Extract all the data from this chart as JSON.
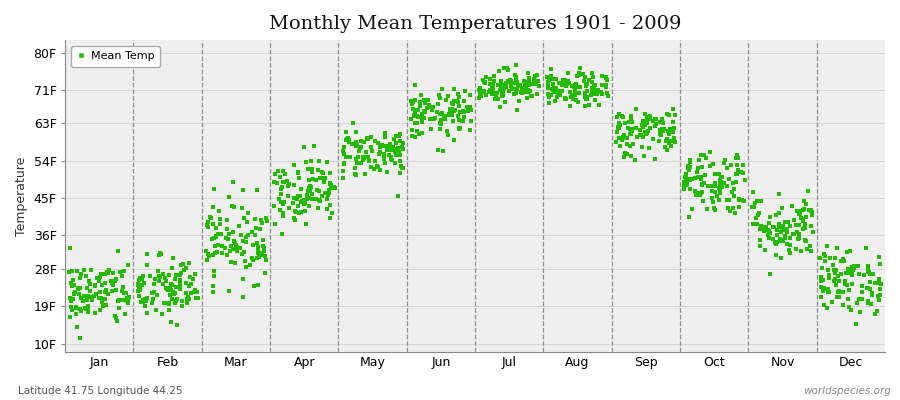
{
  "title": "Monthly Mean Temperatures 1901 - 2009",
  "ylabel": "Temperature",
  "lat_lon_label": "Latitude 41.75 Longitude 44.25",
  "source_label": "worldspecies.org",
  "dot_color": "#22bb00",
  "bg_color": "#ffffff",
  "plot_bg_color": "#efefef",
  "ytick_labels": [
    "10F",
    "19F",
    "28F",
    "36F",
    "45F",
    "54F",
    "63F",
    "71F",
    "80F"
  ],
  "ytick_values": [
    10,
    19,
    28,
    36,
    45,
    54,
    63,
    71,
    80
  ],
  "ylim": [
    8,
    83
  ],
  "months": [
    "Jan",
    "Feb",
    "Mar",
    "Apr",
    "May",
    "Jun",
    "Jul",
    "Aug",
    "Sep",
    "Oct",
    "Nov",
    "Dec"
  ],
  "month_mean_F": [
    22,
    23,
    35,
    47,
    56,
    65,
    72,
    71,
    61,
    49,
    38,
    25
  ],
  "month_std_F": [
    4,
    4,
    5,
    4,
    3,
    3,
    2,
    2,
    3,
    4,
    4,
    4
  ],
  "n_years": 109,
  "marker_size": 5,
  "legend_label": "Mean Temp",
  "title_fontsize": 14,
  "axis_label_fontsize": 9,
  "tick_fontsize": 9
}
